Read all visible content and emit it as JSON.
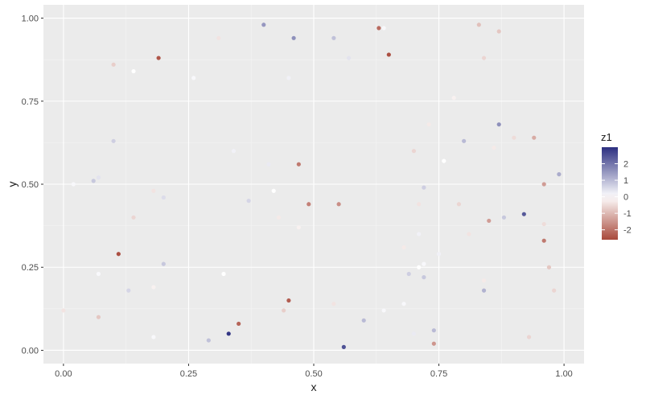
{
  "chart_data": {
    "type": "scatter",
    "title": "",
    "xlabel": "x",
    "ylabel": "y",
    "xlim": [
      -0.04,
      1.04
    ],
    "ylim": [
      -0.04,
      1.04
    ],
    "x_ticks": [
      0.0,
      0.25,
      0.5,
      0.75,
      1.0
    ],
    "x_tick_labels": [
      "0.00",
      "0.25",
      "0.50",
      "0.75",
      "1.00"
    ],
    "y_ticks": [
      0.0,
      0.25,
      0.5,
      0.75,
      1.0
    ],
    "y_tick_labels": [
      "0.00",
      "0.25",
      "0.50",
      "0.75",
      "1.00"
    ],
    "grid": true,
    "panel_background": "#ebebeb",
    "legend": {
      "title": "z1",
      "position": "right",
      "colormap": {
        "low": "#a8483a",
        "mid": "#ffffff",
        "high": "#2c2f80"
      },
      "range": [
        -2.6,
        3.0
      ],
      "ticks": [
        2,
        1,
        0,
        -1,
        -2
      ],
      "tick_labels": [
        "2",
        "1",
        "0",
        "-1",
        "-2"
      ]
    },
    "points": [
      {
        "x": 0.4,
        "y": 0.98,
        "z": 1.5
      },
      {
        "x": 0.46,
        "y": 0.94,
        "z": 1.6
      },
      {
        "x": 0.54,
        "y": 0.94,
        "z": 0.9
      },
      {
        "x": 0.63,
        "y": 0.97,
        "z": -2.1
      },
      {
        "x": 0.64,
        "y": 0.97,
        "z": 0.1
      },
      {
        "x": 0.83,
        "y": 0.98,
        "z": -0.9
      },
      {
        "x": 0.87,
        "y": 0.96,
        "z": -0.8
      },
      {
        "x": 0.31,
        "y": 0.94,
        "z": -0.4
      },
      {
        "x": 0.19,
        "y": 0.88,
        "z": -2.4
      },
      {
        "x": 0.65,
        "y": 0.89,
        "z": -2.5
      },
      {
        "x": 0.84,
        "y": 0.88,
        "z": -0.6
      },
      {
        "x": 0.1,
        "y": 0.86,
        "z": -0.7
      },
      {
        "x": 0.14,
        "y": 0.84,
        "z": 0.0
      },
      {
        "x": 0.57,
        "y": 0.88,
        "z": 0.4
      },
      {
        "x": 0.26,
        "y": 0.82,
        "z": 0.1
      },
      {
        "x": 0.45,
        "y": 0.82,
        "z": 0.2
      },
      {
        "x": 0.78,
        "y": 0.76,
        "z": -0.2
      },
      {
        "x": 0.87,
        "y": 0.68,
        "z": 1.6
      },
      {
        "x": 0.73,
        "y": 0.68,
        "z": -0.3
      },
      {
        "x": 0.94,
        "y": 0.64,
        "z": -1.2
      },
      {
        "x": 0.1,
        "y": 0.63,
        "z": 0.7
      },
      {
        "x": 0.8,
        "y": 0.63,
        "z": 1.0
      },
      {
        "x": 0.9,
        "y": 0.64,
        "z": -0.5
      },
      {
        "x": 0.7,
        "y": 0.6,
        "z": -0.6
      },
      {
        "x": 0.86,
        "y": 0.61,
        "z": -0.3
      },
      {
        "x": 0.34,
        "y": 0.6,
        "z": 0.2
      },
      {
        "x": 0.47,
        "y": 0.56,
        "z": -1.9
      },
      {
        "x": 0.41,
        "y": 0.56,
        "z": 0.3
      },
      {
        "x": 0.76,
        "y": 0.57,
        "z": 0.0
      },
      {
        "x": 0.99,
        "y": 0.53,
        "z": 1.2
      },
      {
        "x": 0.06,
        "y": 0.51,
        "z": 0.8
      },
      {
        "x": 0.07,
        "y": 0.52,
        "z": 0.4
      },
      {
        "x": 0.02,
        "y": 0.5,
        "z": 0.1
      },
      {
        "x": 0.96,
        "y": 0.5,
        "z": -1.4
      },
      {
        "x": 0.42,
        "y": 0.48,
        "z": 0.0
      },
      {
        "x": 0.72,
        "y": 0.49,
        "z": 0.7
      },
      {
        "x": 0.18,
        "y": 0.48,
        "z": -0.4
      },
      {
        "x": 0.2,
        "y": 0.46,
        "z": 0.5
      },
      {
        "x": 0.37,
        "y": 0.45,
        "z": 0.6
      },
      {
        "x": 0.49,
        "y": 0.44,
        "z": -1.8
      },
      {
        "x": 0.55,
        "y": 0.44,
        "z": -1.6
      },
      {
        "x": 0.79,
        "y": 0.44,
        "z": -0.6
      },
      {
        "x": 0.71,
        "y": 0.44,
        "z": -0.4
      },
      {
        "x": 0.92,
        "y": 0.41,
        "z": 2.4
      },
      {
        "x": 0.14,
        "y": 0.4,
        "z": -0.6
      },
      {
        "x": 0.43,
        "y": 0.4,
        "z": -0.3
      },
      {
        "x": 0.85,
        "y": 0.39,
        "z": -1.4
      },
      {
        "x": 0.88,
        "y": 0.4,
        "z": 0.8
      },
      {
        "x": 0.96,
        "y": 0.38,
        "z": -0.5
      },
      {
        "x": 0.47,
        "y": 0.37,
        "z": -0.2
      },
      {
        "x": 0.81,
        "y": 0.35,
        "z": -0.4
      },
      {
        "x": 0.71,
        "y": 0.35,
        "z": 0.2
      },
      {
        "x": 0.96,
        "y": 0.33,
        "z": -1.9
      },
      {
        "x": 0.68,
        "y": 0.31,
        "z": -0.3
      },
      {
        "x": 0.75,
        "y": 0.29,
        "z": 0.2
      },
      {
        "x": 0.11,
        "y": 0.29,
        "z": -2.5
      },
      {
        "x": 0.2,
        "y": 0.26,
        "z": 0.8
      },
      {
        "x": 0.72,
        "y": 0.26,
        "z": 0.1
      },
      {
        "x": 0.71,
        "y": 0.25,
        "z": 0.0
      },
      {
        "x": 0.97,
        "y": 0.25,
        "z": -0.8
      },
      {
        "x": 0.32,
        "y": 0.23,
        "z": 0.0
      },
      {
        "x": 0.07,
        "y": 0.23,
        "z": 0.1
      },
      {
        "x": 0.69,
        "y": 0.23,
        "z": 0.7
      },
      {
        "x": 0.72,
        "y": 0.22,
        "z": 0.8
      },
      {
        "x": 0.84,
        "y": 0.21,
        "z": -0.3
      },
      {
        "x": 0.13,
        "y": 0.18,
        "z": 0.6
      },
      {
        "x": 0.18,
        "y": 0.19,
        "z": -0.2
      },
      {
        "x": 0.84,
        "y": 0.18,
        "z": 1.1
      },
      {
        "x": 0.98,
        "y": 0.18,
        "z": -0.6
      },
      {
        "x": 0.45,
        "y": 0.15,
        "z": -2.3
      },
      {
        "x": 0.54,
        "y": 0.14,
        "z": -0.4
      },
      {
        "x": 0.68,
        "y": 0.14,
        "z": 0.1
      },
      {
        "x": 0.44,
        "y": 0.12,
        "z": -0.7
      },
      {
        "x": 0.64,
        "y": 0.12,
        "z": 0.1
      },
      {
        "x": 0.0,
        "y": 0.12,
        "z": -0.4
      },
      {
        "x": 0.07,
        "y": 0.1,
        "z": -0.8
      },
      {
        "x": 0.6,
        "y": 0.09,
        "z": 1.0
      },
      {
        "x": 0.35,
        "y": 0.08,
        "z": -2.2
      },
      {
        "x": 0.33,
        "y": 0.05,
        "z": 2.9
      },
      {
        "x": 0.74,
        "y": 0.06,
        "z": 1.0
      },
      {
        "x": 0.7,
        "y": 0.05,
        "z": 0.3
      },
      {
        "x": 0.18,
        "y": 0.04,
        "z": 0.1
      },
      {
        "x": 0.93,
        "y": 0.04,
        "z": -0.6
      },
      {
        "x": 0.29,
        "y": 0.03,
        "z": 0.9
      },
      {
        "x": 0.74,
        "y": 0.02,
        "z": -1.5
      },
      {
        "x": 0.56,
        "y": 0.01,
        "z": 2.5
      }
    ]
  }
}
